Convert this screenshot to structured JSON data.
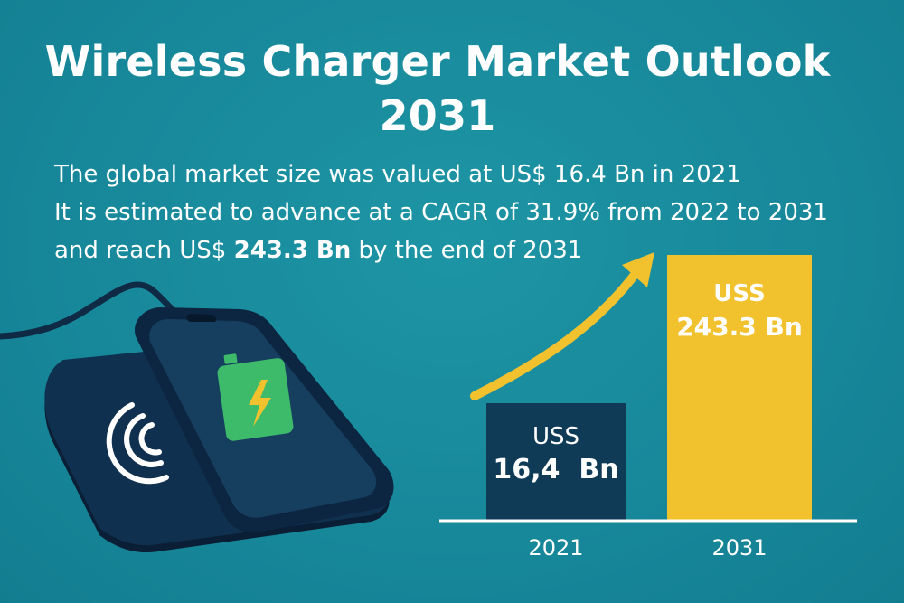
{
  "title": {
    "line1": "Wireless Charger Market Outlook",
    "line2": "2031"
  },
  "description": {
    "line1": "The global market size was valued at US$ 16.4 Bn in 2021",
    "line2": "It is estimated to advance at a CAGR of 31.9% from 2022 to 2031",
    "line3_prefix": "and reach US$ ",
    "line3_bold": "243.3 Bn",
    "line3_suffix": " by the end of 2031"
  },
  "colors": {
    "background": "#1a8c9c",
    "bar_2021": "#0f3b57",
    "bar_2031": "#f2c12e",
    "arrow": "#f2c12e",
    "charger": "#0f2a45",
    "battery": "#3dbb6a"
  },
  "icons": [
    "wireless-signal-icon",
    "battery-charging-icon",
    "trend-arrow-icon"
  ],
  "chart_data": {
    "type": "bar",
    "categories": [
      "2021",
      "2031"
    ],
    "values": [
      16.4,
      243.3
    ],
    "bar_labels": [
      {
        "line1": "USS",
        "line2": "16,4  Bn"
      },
      {
        "line1": "USS",
        "line2": "243.3 Bn"
      }
    ],
    "title": "Wireless Charger Market Outlook 2031",
    "xlabel": "",
    "ylabel": "",
    "grid": false,
    "legend": "none"
  }
}
